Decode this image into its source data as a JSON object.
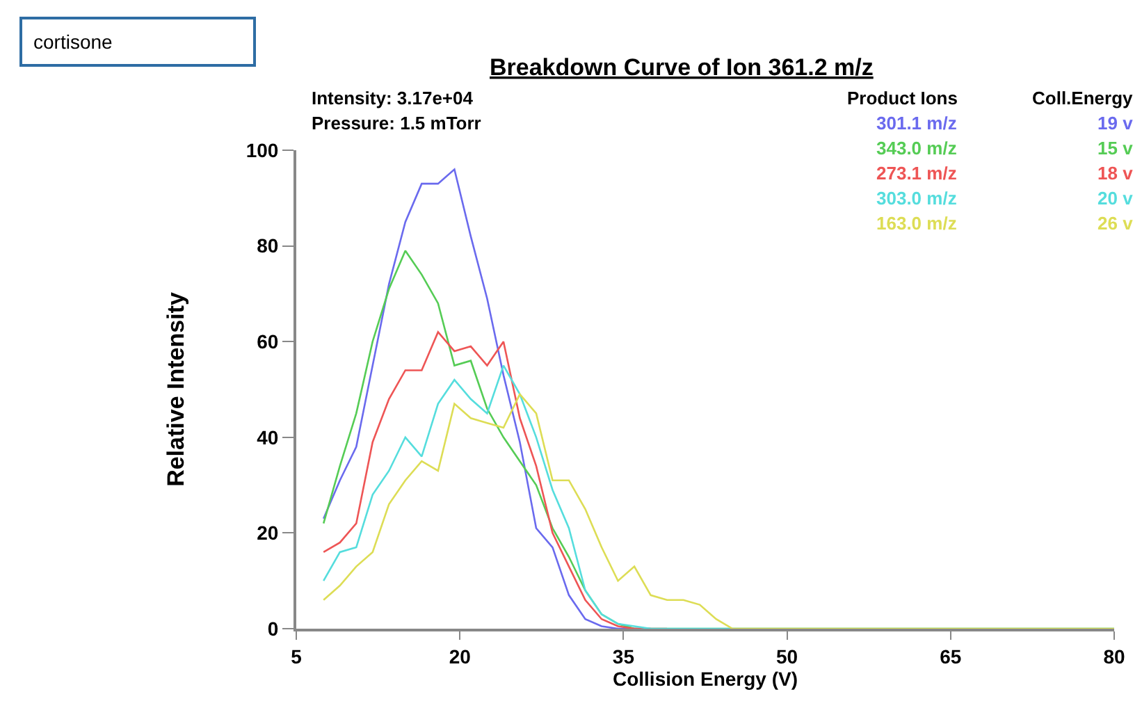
{
  "chart_data": {
    "type": "line",
    "title": "Breakdown Curve of Ion 361.2 m/z",
    "xlabel": "Collision Energy (V)",
    "ylabel": "Relative Intensity",
    "annotations": [
      "cortisone",
      "Intensity: 3.17e+04",
      "Pressure: 1.5 mTorr",
      "Product Ions",
      "Coll.Energy",
      "19 v",
      "15 v",
      "18 v",
      "20 v",
      "26 v"
    ],
    "x": [
      7.5,
      9,
      10.5,
      12,
      13.5,
      15,
      16.5,
      18,
      19.5,
      21,
      22.5,
      24,
      25.5,
      27,
      28.5,
      30,
      31.5,
      33,
      34.5,
      36,
      37.5,
      39,
      40.5,
      42,
      43.5,
      45,
      80
    ],
    "series": [
      {
        "name": "301.1 m/z",
        "color": "#6a6aee",
        "values": [
          23,
          31,
          38,
          55,
          72,
          85,
          93,
          93,
          96,
          82,
          69,
          53,
          39,
          21,
          17,
          7,
          2,
          0.5,
          0,
          0,
          0,
          null,
          null,
          null,
          null,
          null,
          null
        ]
      },
      {
        "name": "343.0 m/z",
        "color": "#55cc55",
        "values": [
          22,
          34,
          45,
          60,
          71,
          79,
          74,
          68,
          55,
          56,
          46,
          40,
          35,
          30,
          21,
          15,
          8,
          3,
          1,
          0,
          0,
          0,
          0,
          0,
          0,
          0,
          0
        ]
      },
      {
        "name": "273.1 m/z",
        "color": "#ee5555",
        "values": [
          16,
          18,
          22,
          39,
          48,
          54,
          54,
          62,
          58,
          59,
          55,
          60,
          44,
          34,
          20,
          13,
          6,
          2,
          0.5,
          0,
          0,
          0,
          null,
          null,
          null,
          null,
          null
        ]
      },
      {
        "name": "303.0 m/z",
        "color": "#55dddd",
        "values": [
          10,
          16,
          17,
          28,
          33,
          40,
          36,
          47,
          52,
          48,
          45,
          55,
          49,
          40,
          29,
          21,
          8,
          3,
          1,
          0.5,
          0,
          0,
          0,
          0,
          0,
          0,
          0
        ]
      },
      {
        "name": "163.0 m/z",
        "color": "#dddd55",
        "values": [
          6,
          9,
          13,
          16,
          26,
          31,
          35,
          33,
          47,
          44,
          43,
          42,
          49,
          45,
          31,
          31,
          25,
          17,
          10,
          13,
          7,
          6,
          6,
          5,
          2,
          0,
          0
        ]
      }
    ],
    "xlim": [
      5,
      80
    ],
    "xticks": [
      5,
      20,
      35,
      50,
      65,
      80
    ],
    "ylim": [
      0,
      100
    ],
    "yticks": [
      0,
      20,
      40,
      60,
      80,
      100
    ],
    "legend": false,
    "marker": "none",
    "line_style": "solid"
  }
}
